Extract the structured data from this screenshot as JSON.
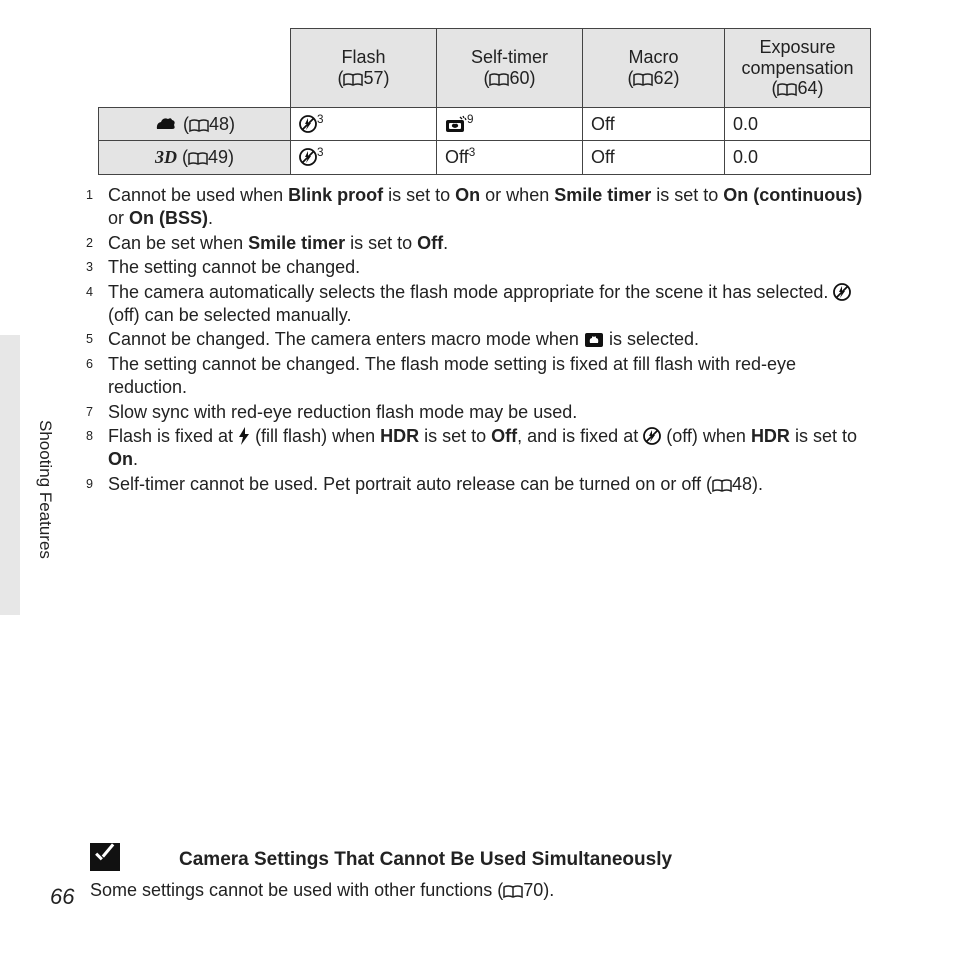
{
  "table": {
    "headers": [
      {
        "title": "Flash",
        "ref": "57"
      },
      {
        "title": "Self-timer",
        "ref": "60"
      },
      {
        "title": "Macro",
        "ref": "62"
      },
      {
        "title": "Exposure compensation",
        "ref": "64"
      }
    ],
    "rows": [
      {
        "icon": "pet",
        "ref": "48",
        "cells": [
          {
            "kind": "flash-off-icon",
            "sup": "3"
          },
          {
            "kind": "pet-release-icon",
            "sup": "9"
          },
          {
            "kind": "text",
            "text": "Off"
          },
          {
            "kind": "text",
            "text": "0.0"
          }
        ]
      },
      {
        "icon": "3d",
        "ref": "49",
        "cells": [
          {
            "kind": "flash-off-icon",
            "sup": "3"
          },
          {
            "kind": "text",
            "text": "Off",
            "sup": "3"
          },
          {
            "kind": "text",
            "text": "Off"
          },
          {
            "kind": "text",
            "text": "0.0"
          }
        ]
      }
    ]
  },
  "footnotes": [
    {
      "n": "1",
      "html": "Cannot be used when <b>Blink proof</b> is set to <b>On</b> or when <b>Smile timer</b> is set to <b>On (continuous)</b> or <b>On (BSS)</b>."
    },
    {
      "n": "2",
      "html": "Can be set when <b>Smile timer</b> is set to <b>Off</b>."
    },
    {
      "n": "3",
      "html": "The setting cannot be changed."
    },
    {
      "n": "4",
      "html": "The camera automatically selects the flash mode appropriate for the scene it has selected. {flashoff} (off) can be selected manually."
    },
    {
      "n": "5",
      "html": "Cannot be changed. The camera enters macro mode when {closeup} is selected."
    },
    {
      "n": "6",
      "html": "The setting cannot be changed. The flash mode setting is fixed at fill flash with red-eye reduction."
    },
    {
      "n": "7",
      "html": "Slow sync with red-eye reduction flash mode may be used."
    },
    {
      "n": "8",
      "html": "Flash is fixed at {flash} (fill flash) when <b>HDR</b> is set to <b>Off</b>, and is fixed at {flashoff} (off) when <b>HDR</b> is set to <b>On</b>."
    },
    {
      "n": "9",
      "html": "Self-timer cannot be used. Pet portrait auto release can be turned on or off ({book}48)."
    }
  ],
  "sidetab": "Shooting Features",
  "note": {
    "title": "Camera Settings That Cannot Be Used Simultaneously",
    "body_pre": "Some settings cannot be used with other functions (",
    "body_ref": "70",
    "body_post": ")."
  },
  "page_number": "66"
}
